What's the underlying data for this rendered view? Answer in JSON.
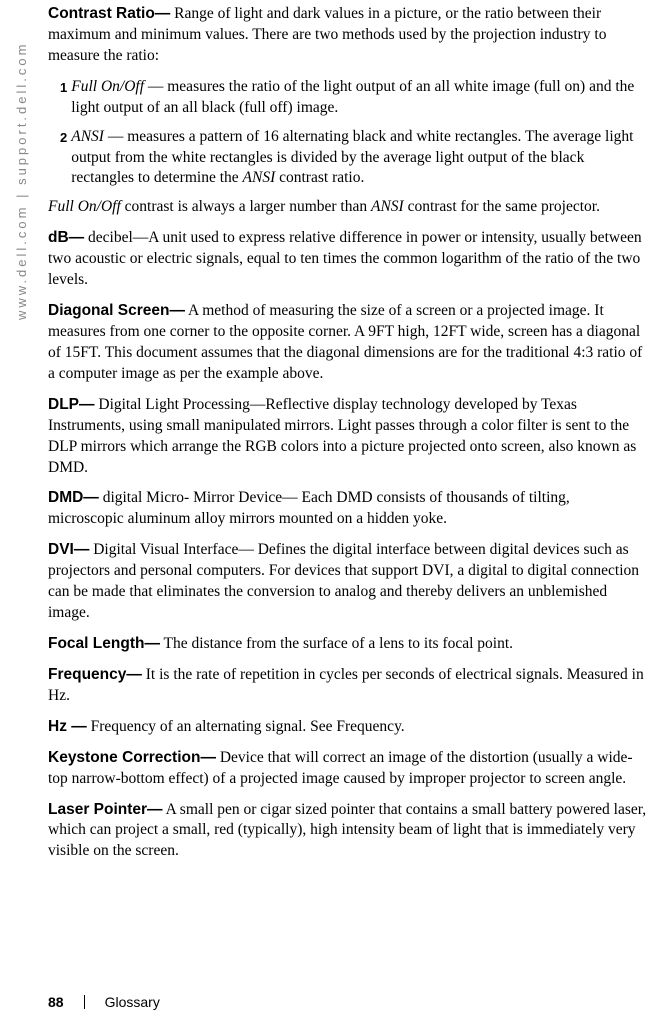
{
  "sidebar": "www.dell.com | support.dell.com",
  "entries": [
    {
      "term": "Contrast Ratio—",
      "def": " Range of light and dark values in a picture, or the ratio between their maximum and minimum values. There are two methods used by the projection industry to measure the ratio:"
    }
  ],
  "list": [
    {
      "num": "1",
      "italic": "Full On/Off",
      "rest": " — measures the ratio of the light output of an all white image (full on) and the light output of an all black (full off) image."
    },
    {
      "num": "2",
      "italic": "ANSI",
      "rest": " — measures a pattern of 16 alternating black and white rectangles. The average light output from the white rectangles is divided by the average light output of the black rectangles to determine the ",
      "italic2": "ANSI",
      "rest2": " contrast ratio."
    }
  ],
  "note_italic1": "Full On/Off",
  "note_mid": " contrast is always a larger number than ",
  "note_italic2": "ANSI",
  "note_end": " contrast for the same projector.",
  "defs": [
    {
      "term": "dB—",
      "def": " decibel—A unit used to express relative difference in power or intensity, usually between two acoustic or electric signals, equal to ten times the common logarithm of the ratio of the two levels."
    },
    {
      "term": "Diagonal Screen—",
      "def": " A method of measuring the size of a screen or a projected image. It measures from one corner to the opposite corner. A 9FT high, 12FT wide, screen has a diagonal of 15FT. This document assumes that the diagonal dimensions are for the traditional 4:3 ratio of a computer image as per the example above."
    },
    {
      "term": "DLP—",
      "def": " Digital Light Processing—Reflective display technology developed by Texas Instruments, using small manipulated mirrors. Light passes through a color filter is sent to the DLP mirrors which arrange the RGB colors into a picture projected onto screen, also known as DMD."
    },
    {
      "term": "DMD—",
      "def": " digital Micro- Mirror Device— Each DMD consists of thousands of tilting, microscopic aluminum alloy mirrors mounted on a hidden yoke."
    },
    {
      "term": "DVI—",
      "def": " Digital Visual Interface— Defines the digital interface between digital devices such as projectors and personal computers. For devices that support DVI, a digital to digital connection can be made that eliminates the conversion to analog and thereby delivers an unblemished image."
    },
    {
      "term": "Focal Length—",
      "def": " The distance from the surface of a lens to its focal point."
    },
    {
      "term": "Frequency—",
      "def": " It is the rate of repetition in cycles per seconds of electrical signals. Measured in Hz."
    },
    {
      "term": "Hz —",
      "def": " Frequency of an alternating signal. See Frequency."
    },
    {
      "term": "Keystone Correction—",
      "def": " Device that will correct an image of the distortion (usually a wide-top narrow-bottom effect) of a projected image caused by improper projector to screen angle."
    },
    {
      "term": "Laser Pointer—",
      "def": " A small pen or cigar sized pointer that contains a small battery powered laser, which can project a small, red (typically), high intensity beam of light that is immediately very visible on the screen."
    }
  ],
  "footer": {
    "page": "88",
    "section": "Glossary"
  }
}
